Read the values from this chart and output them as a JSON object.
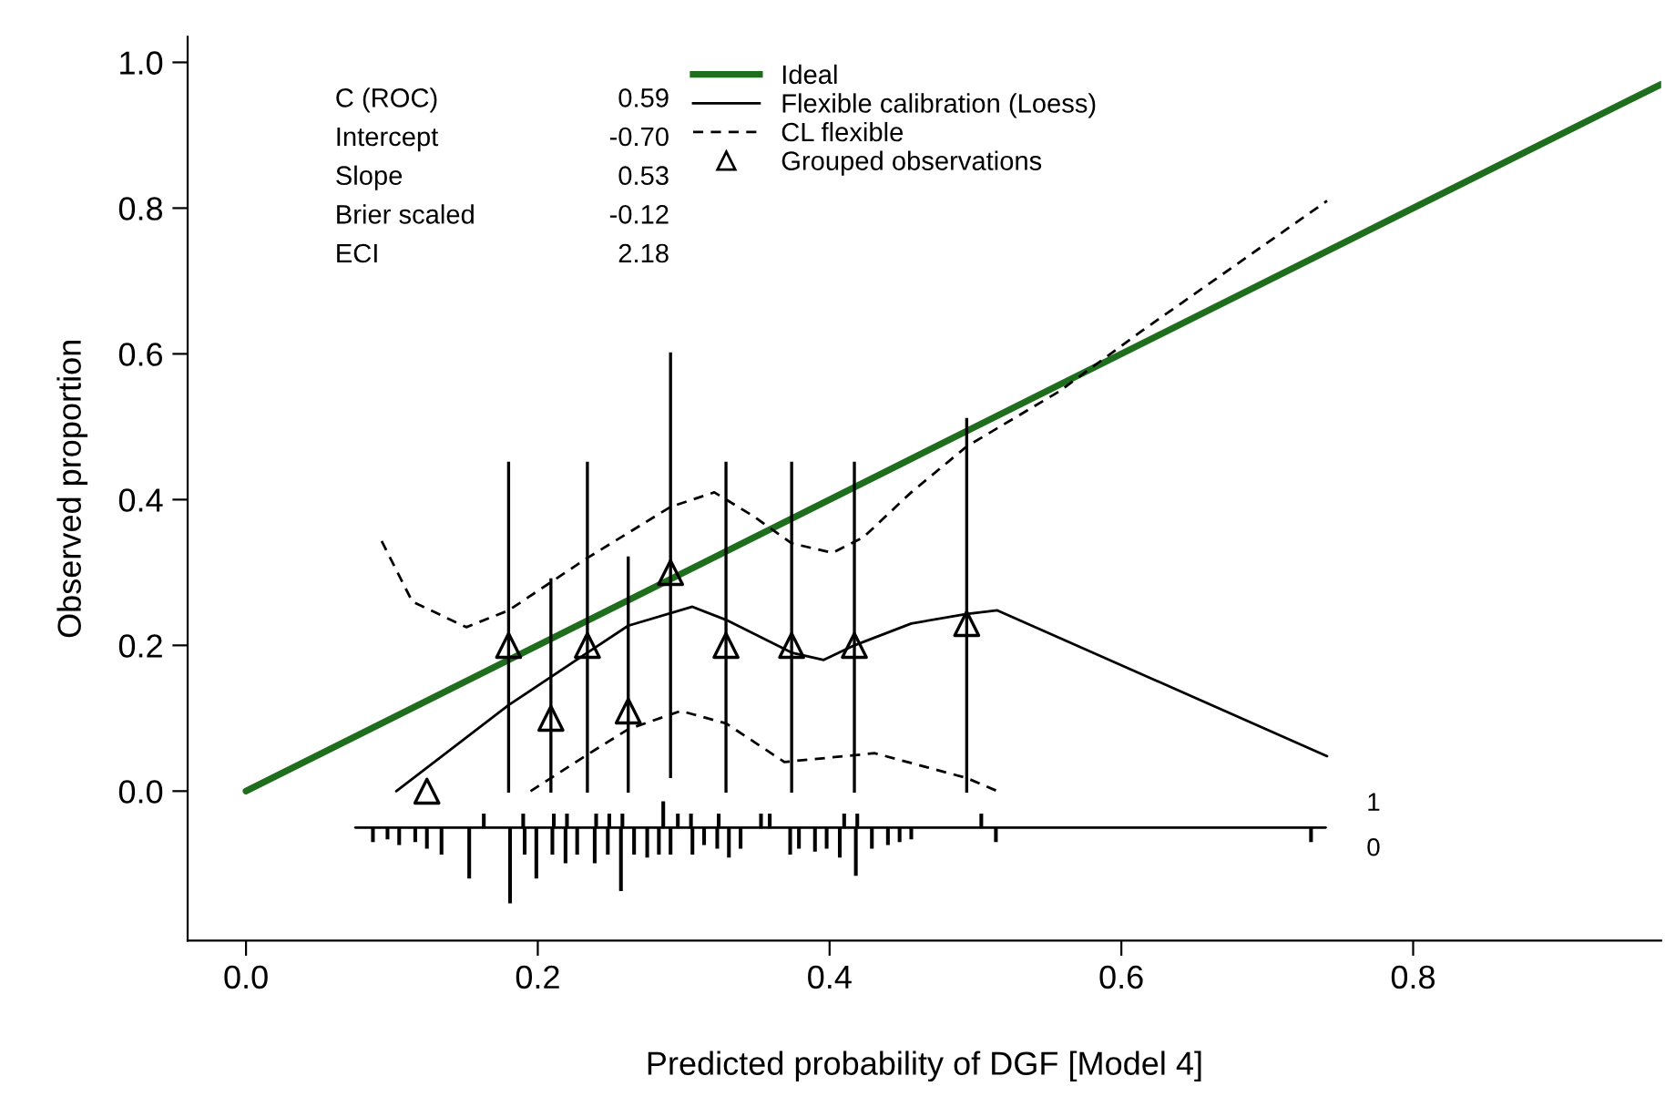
{
  "chart_data": {
    "type": "line",
    "xlabel": "Predicted probability of DGF [Model 4]",
    "ylabel": "Observed proportion",
    "xlim": [
      -0.04,
      0.97
    ],
    "ylim": [
      -0.205,
      1.035
    ],
    "xticks": [
      {
        "value": 0,
        "label": "0.0"
      },
      {
        "value": 0.2,
        "label": "0.2"
      },
      {
        "value": 0.4,
        "label": "0.4"
      },
      {
        "value": 0.6,
        "label": "0.6"
      },
      {
        "value": 0.8,
        "label": "0.8"
      }
    ],
    "yticks": [
      {
        "value": 0,
        "label": "0.0"
      },
      {
        "value": 0.2,
        "label": "0.2"
      },
      {
        "value": 0.4,
        "label": "0.4"
      },
      {
        "value": 0.6,
        "label": "0.6"
      },
      {
        "value": 0.8,
        "label": "0.8"
      },
      {
        "value": 1,
        "label": "1.0"
      }
    ],
    "grid": false,
    "legend": "top",
    "series": [
      {
        "name": "Ideal",
        "color": "#1e6e1e",
        "x": [
          0,
          0.97
        ],
        "values": [
          0,
          0.97
        ]
      },
      {
        "name": "Flexible calibration (Loess)",
        "color": "#000000",
        "line_style": "solid",
        "x": [
          0.103,
          0.18,
          0.234,
          0.262,
          0.306,
          0.329,
          0.374,
          0.396,
          0.417,
          0.456,
          0.494,
          0.515,
          0.741
        ],
        "values": [
          0.0,
          0.118,
          0.19,
          0.227,
          0.253,
          0.235,
          0.19,
          0.18,
          0.2,
          0.23,
          0.243,
          0.248,
          0.048
        ]
      },
      {
        "name": "CL flexible",
        "type": "line",
        "color": "#000000",
        "line_style": "dashed",
        "x": [
          0.093,
          0.114,
          0.151,
          0.18,
          0.234,
          0.291,
          0.321,
          0.348,
          0.374,
          0.402,
          0.423,
          0.456,
          0.494,
          0.557,
          0.613,
          0.741
        ],
        "values": [
          0.343,
          0.26,
          0.225,
          0.248,
          0.32,
          0.39,
          0.41,
          0.377,
          0.34,
          0.327,
          0.348,
          0.41,
          0.473,
          0.548,
          0.63,
          0.81
        ]
      },
      {
        "type": "line",
        "color": "#000000",
        "line_style": "dashed",
        "x": [
          0.195,
          0.234,
          0.262,
          0.298,
          0.329,
          0.369,
          0.431,
          0.494,
          0.515
        ],
        "values": [
          0.0,
          0.05,
          0.085,
          0.11,
          0.093,
          0.04,
          0.052,
          0.018,
          0.0
        ]
      },
      {
        "name": "Grouped observations",
        "type": "scatter",
        "color": "#000000",
        "marker": "triangle",
        "x": [
          0.124,
          0.18,
          0.209,
          0.234,
          0.262,
          0.291,
          0.329,
          0.374,
          0.417,
          0.494
        ],
        "values": [
          0.0,
          0.2,
          0.1,
          0.2,
          0.11,
          0.3,
          0.2,
          0.2,
          0.2,
          0.23
        ],
        "errors": [
          null,
          [
            0,
            0.45
          ],
          [
            0,
            0.29
          ],
          [
            0,
            0.45
          ],
          [
            0,
            0.32
          ],
          [
            0.02,
            0.6
          ],
          [
            0,
            0.45
          ],
          [
            0,
            0.45
          ],
          [
            0,
            0.45
          ],
          [
            0,
            0.51
          ]
        ]
      },
      {
        "type": "line",
        "color": "#000000",
        "line_style": "solid",
        "x": [
          0.075,
          0.74
        ],
        "values": [
          -0.05,
          -0.05
        ]
      },
      {
        "type": "bar",
        "color": "#000000",
        "x": [
          0.087,
          0.097,
          0.105,
          0.116,
          0.124,
          0.134,
          0.153,
          0.163,
          0.181,
          0.19,
          0.191,
          0.199,
          0.21,
          0.211,
          0.219,
          0.22,
          0.227,
          0.239,
          0.24,
          0.248,
          0.249,
          0.257,
          0.258,
          0.266,
          0.275,
          0.283,
          0.286,
          0.291,
          0.296,
          0.305,
          0.306,
          0.314,
          0.323,
          0.324,
          0.331,
          0.339,
          0.353,
          0.359,
          0.373,
          0.379,
          0.39,
          0.398,
          0.407,
          0.41,
          0.418,
          0.419,
          0.429,
          0.44,
          0.448,
          0.456,
          0.504,
          0.514,
          0.73
        ],
        "base": [
          -0.05,
          -0.05,
          -0.05,
          -0.05,
          -0.05,
          -0.05,
          -0.05,
          -0.05,
          -0.05,
          -0.05,
          -0.05,
          -0.05,
          -0.05,
          -0.05,
          -0.05,
          -0.05,
          -0.05,
          -0.05,
          -0.05,
          -0.05,
          -0.05,
          -0.05,
          -0.05,
          -0.05,
          -0.05,
          -0.05,
          -0.05,
          -0.05,
          -0.05,
          -0.05,
          -0.05,
          -0.05,
          -0.05,
          -0.05,
          -0.05,
          -0.05,
          -0.05,
          -0.05,
          -0.05,
          -0.05,
          -0.05,
          -0.05,
          -0.05,
          -0.05,
          -0.05,
          -0.05,
          -0.05,
          -0.05,
          -0.05,
          -0.05,
          -0.05,
          -0.05,
          -0.05
        ],
        "values": [
          -0.019,
          -0.015,
          -0.023,
          -0.019,
          -0.028,
          -0.036,
          -0.069,
          0.018,
          -0.103,
          0.018,
          -0.036,
          -0.069,
          -0.036,
          0.018,
          -0.048,
          0.018,
          -0.036,
          -0.048,
          0.018,
          -0.036,
          0.018,
          -0.086,
          0.018,
          -0.036,
          -0.04,
          -0.036,
          0.035,
          -0.036,
          0.018,
          0.018,
          -0.036,
          -0.023,
          -0.028,
          0.018,
          -0.04,
          -0.028,
          0.018,
          0.018,
          -0.036,
          -0.028,
          -0.032,
          -0.028,
          -0.04,
          0.018,
          -0.065,
          0.018,
          -0.028,
          -0.023,
          -0.019,
          -0.015,
          0.018,
          -0.019,
          -0.019
        ]
      }
    ],
    "annotations": [
      "C (ROC)",
      "0.59",
      "Intercept",
      "-0.70",
      "Slope",
      "0.53",
      "Brier scaled",
      "-0.12",
      "ECI",
      "2.18",
      "1",
      "0"
    ]
  }
}
